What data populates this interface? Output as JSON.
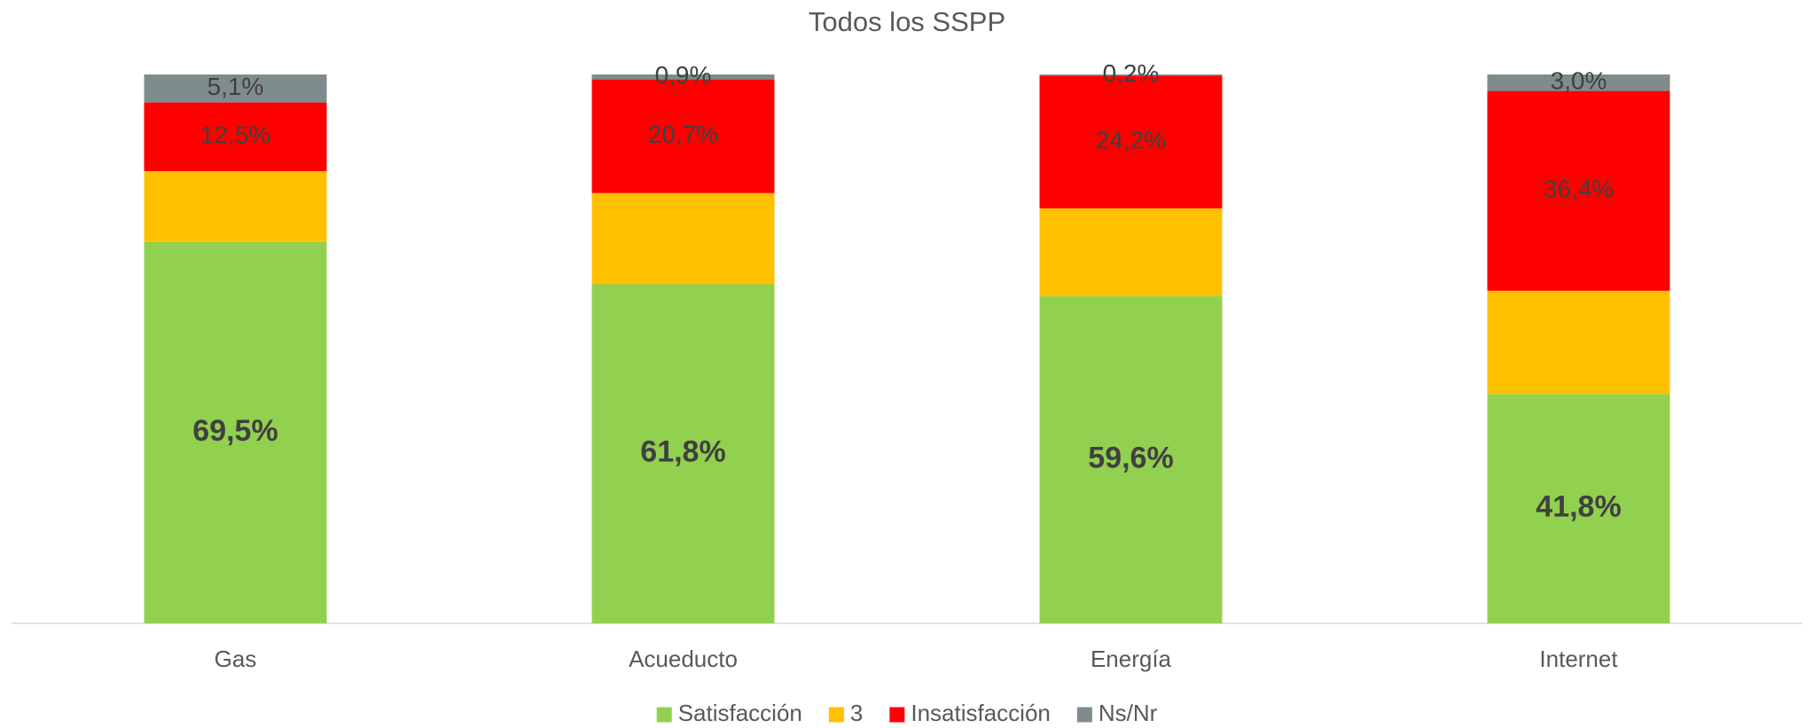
{
  "chart_data": {
    "type": "stacked_bar",
    "title": "Todos los SSPP",
    "categories": [
      "Gas",
      "Acueducto",
      "Energía",
      "Internet"
    ],
    "ylim": [
      0,
      100
    ],
    "series": [
      {
        "name": "Satisfacción",
        "color": "#92d050",
        "values": [
          69.5,
          61.8,
          59.6,
          41.8
        ],
        "value_labels": [
          "69,5%",
          "61,8%",
          "59,6%",
          "41,8%"
        ]
      },
      {
        "name": "3",
        "color": "#ffc000",
        "values": [
          12.9,
          16.6,
          16.0,
          18.8
        ]
      },
      {
        "name": "Insatisfacción",
        "color": "#ff0000",
        "values": [
          12.5,
          20.7,
          24.2,
          36.4
        ],
        "value_labels": [
          "12,5%",
          "20,7%",
          "24,2%",
          "36,4%"
        ]
      },
      {
        "name": "Ns/Nr",
        "color": "#7f8c8d",
        "values": [
          5.1,
          0.9,
          0.2,
          3.0
        ],
        "value_labels": [
          "5,1%",
          "0,9%",
          "0,2%",
          "3,0%"
        ]
      }
    ],
    "legend": "bottom"
  }
}
